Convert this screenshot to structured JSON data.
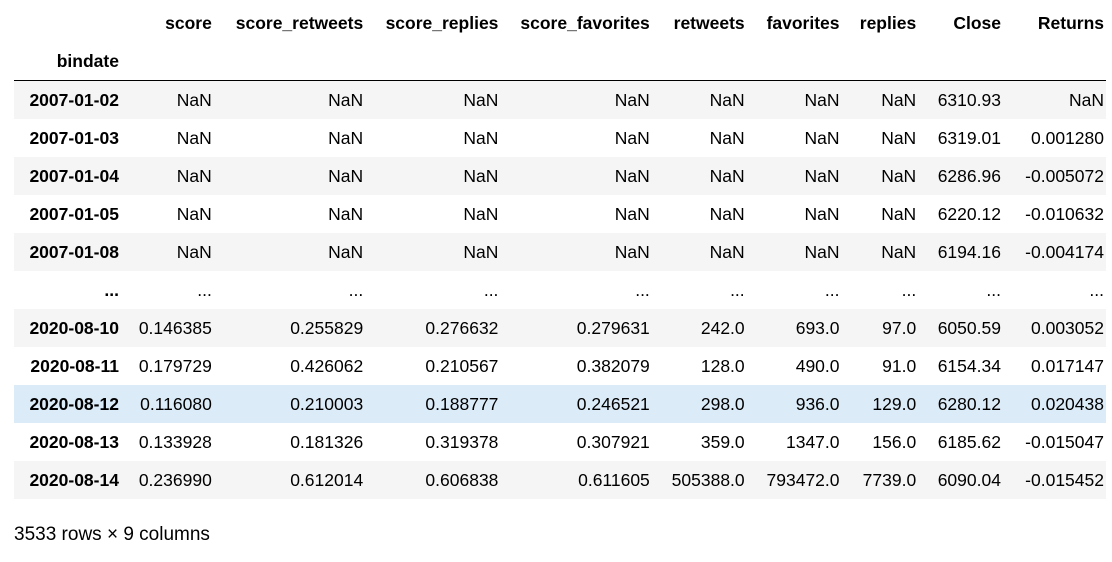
{
  "table": {
    "columns": [
      "score",
      "score_retweets",
      "score_replies",
      "score_favorites",
      "retweets",
      "favorites",
      "replies",
      "Close",
      "Returns"
    ],
    "index_name": "bindate",
    "rows": [
      {
        "index": "2007-01-02",
        "cells": [
          "NaN",
          "NaN",
          "NaN",
          "NaN",
          "NaN",
          "NaN",
          "NaN",
          "6310.93",
          "NaN"
        ]
      },
      {
        "index": "2007-01-03",
        "cells": [
          "NaN",
          "NaN",
          "NaN",
          "NaN",
          "NaN",
          "NaN",
          "NaN",
          "6319.01",
          "0.001280"
        ]
      },
      {
        "index": "2007-01-04",
        "cells": [
          "NaN",
          "NaN",
          "NaN",
          "NaN",
          "NaN",
          "NaN",
          "NaN",
          "6286.96",
          "-0.005072"
        ]
      },
      {
        "index": "2007-01-05",
        "cells": [
          "NaN",
          "NaN",
          "NaN",
          "NaN",
          "NaN",
          "NaN",
          "NaN",
          "6220.12",
          "-0.010632"
        ]
      },
      {
        "index": "2007-01-08",
        "cells": [
          "NaN",
          "NaN",
          "NaN",
          "NaN",
          "NaN",
          "NaN",
          "NaN",
          "6194.16",
          "-0.004174"
        ]
      },
      {
        "index": "...",
        "cells": [
          "...",
          "...",
          "...",
          "...",
          "...",
          "...",
          "...",
          "...",
          "..."
        ]
      },
      {
        "index": "2020-08-10",
        "cells": [
          "0.146385",
          "0.255829",
          "0.276632",
          "0.279631",
          "242.0",
          "693.0",
          "97.0",
          "6050.59",
          "0.003052"
        ]
      },
      {
        "index": "2020-08-11",
        "cells": [
          "0.179729",
          "0.426062",
          "0.210567",
          "0.382079",
          "128.0",
          "490.0",
          "91.0",
          "6154.34",
          "0.017147"
        ]
      },
      {
        "index": "2020-08-12",
        "cells": [
          "0.116080",
          "0.210003",
          "0.188777",
          "0.246521",
          "298.0",
          "936.0",
          "129.0",
          "6280.12",
          "0.020438"
        ]
      },
      {
        "index": "2020-08-13",
        "cells": [
          "0.133928",
          "0.181326",
          "0.319378",
          "0.307921",
          "359.0",
          "1347.0",
          "156.0",
          "6185.62",
          "-0.015047"
        ]
      },
      {
        "index": "2020-08-14",
        "cells": [
          "0.236990",
          "0.612014",
          "0.606838",
          "0.611605",
          "505388.0",
          "793472.0",
          "7739.0",
          "6090.04",
          "-0.015452"
        ]
      }
    ],
    "highlight_color": "#dcebf8",
    "stripe_color": "#f5f5f5"
  },
  "footer": {
    "shape_text": "3533 rows × 9 columns"
  }
}
